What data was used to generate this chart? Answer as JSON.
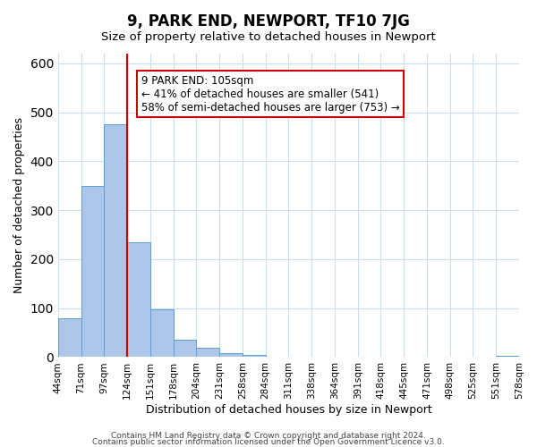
{
  "title": "9, PARK END, NEWPORT, TF10 7JG",
  "subtitle": "Size of property relative to detached houses in Newport",
  "xlabel": "Distribution of detached houses by size in Newport",
  "ylabel": "Number of detached properties",
  "bar_values": [
    80,
    350,
    475,
    235,
    97,
    36,
    19,
    8,
    5,
    0,
    0,
    0,
    0,
    0,
    0,
    0,
    0,
    0,
    0,
    2
  ],
  "bar_labels": [
    "44sqm",
    "71sqm",
    "97sqm",
    "124sqm",
    "151sqm",
    "178sqm",
    "204sqm",
    "231sqm",
    "258sqm",
    "284sqm",
    "311sqm",
    "338sqm",
    "364sqm",
    "391sqm",
    "418sqm",
    "445sqm",
    "471sqm",
    "498sqm",
    "525sqm",
    "551sqm"
  ],
  "all_labels": [
    "44sqm",
    "71sqm",
    "97sqm",
    "124sqm",
    "151sqm",
    "178sqm",
    "204sqm",
    "231sqm",
    "258sqm",
    "284sqm",
    "311sqm",
    "338sqm",
    "364sqm",
    "391sqm",
    "418sqm",
    "445sqm",
    "471sqm",
    "498sqm",
    "525sqm",
    "551sqm",
    "578sqm"
  ],
  "bar_color": "#aec6e8",
  "bar_edge_color": "#5a9fd4",
  "property_line_x": 2.5,
  "property_line_color": "#cc0000",
  "annotation_box_text": "9 PARK END: 105sqm\n← 41% of detached houses are smaller (541)\n58% of semi-detached houses are larger (753) →",
  "ylim": [
    0,
    620
  ],
  "footer_line1": "Contains HM Land Registry data © Crown copyright and database right 2024.",
  "footer_line2": "Contains public sector information licensed under the Open Government Licence v3.0.",
  "background_color": "#ffffff",
  "grid_color": "#ccddee",
  "fig_width": 6.0,
  "fig_height": 5.0
}
